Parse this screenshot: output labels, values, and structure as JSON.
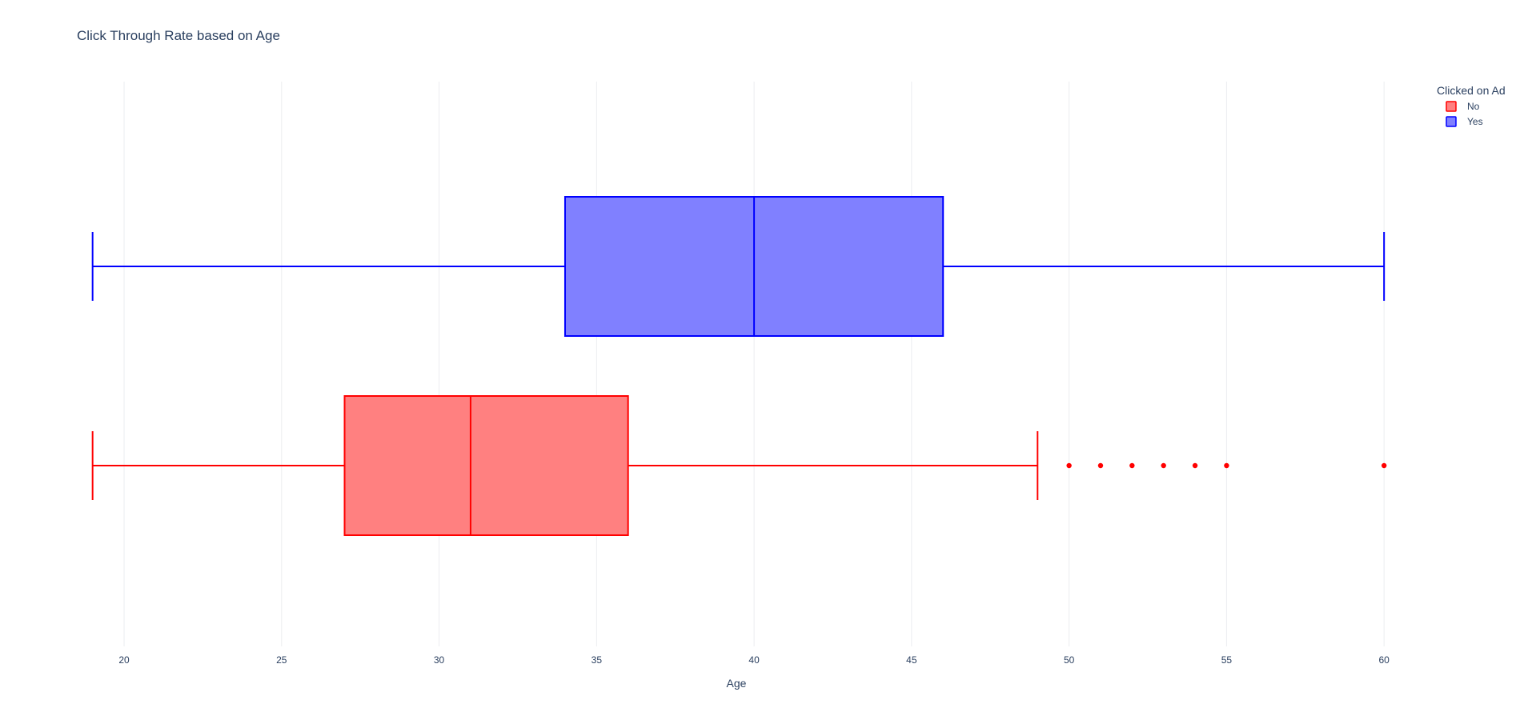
{
  "chart_data": {
    "type": "box",
    "orientation": "horizontal",
    "title": "Click Through Rate based on Age",
    "xlabel": "Age",
    "ylabel": "",
    "xlim": [
      18.5,
      61.8
    ],
    "xticks": [
      20,
      25,
      30,
      35,
      40,
      45,
      50,
      55,
      60
    ],
    "grid": true,
    "legend": {
      "title": "Clicked on Ad",
      "position": "top-right"
    },
    "series": [
      {
        "name": "No",
        "color": "#ff0000",
        "fill": "#ff8080",
        "min": 19,
        "q1": 27,
        "median": 31,
        "q3": 36,
        "max": 49,
        "outliers": [
          50,
          51,
          52,
          53,
          54,
          55,
          60
        ]
      },
      {
        "name": "Yes",
        "color": "#0000ff",
        "fill": "#8080ff",
        "min": 19,
        "q1": 34,
        "median": 40,
        "q3": 46,
        "max": 60,
        "outliers": []
      }
    ]
  }
}
